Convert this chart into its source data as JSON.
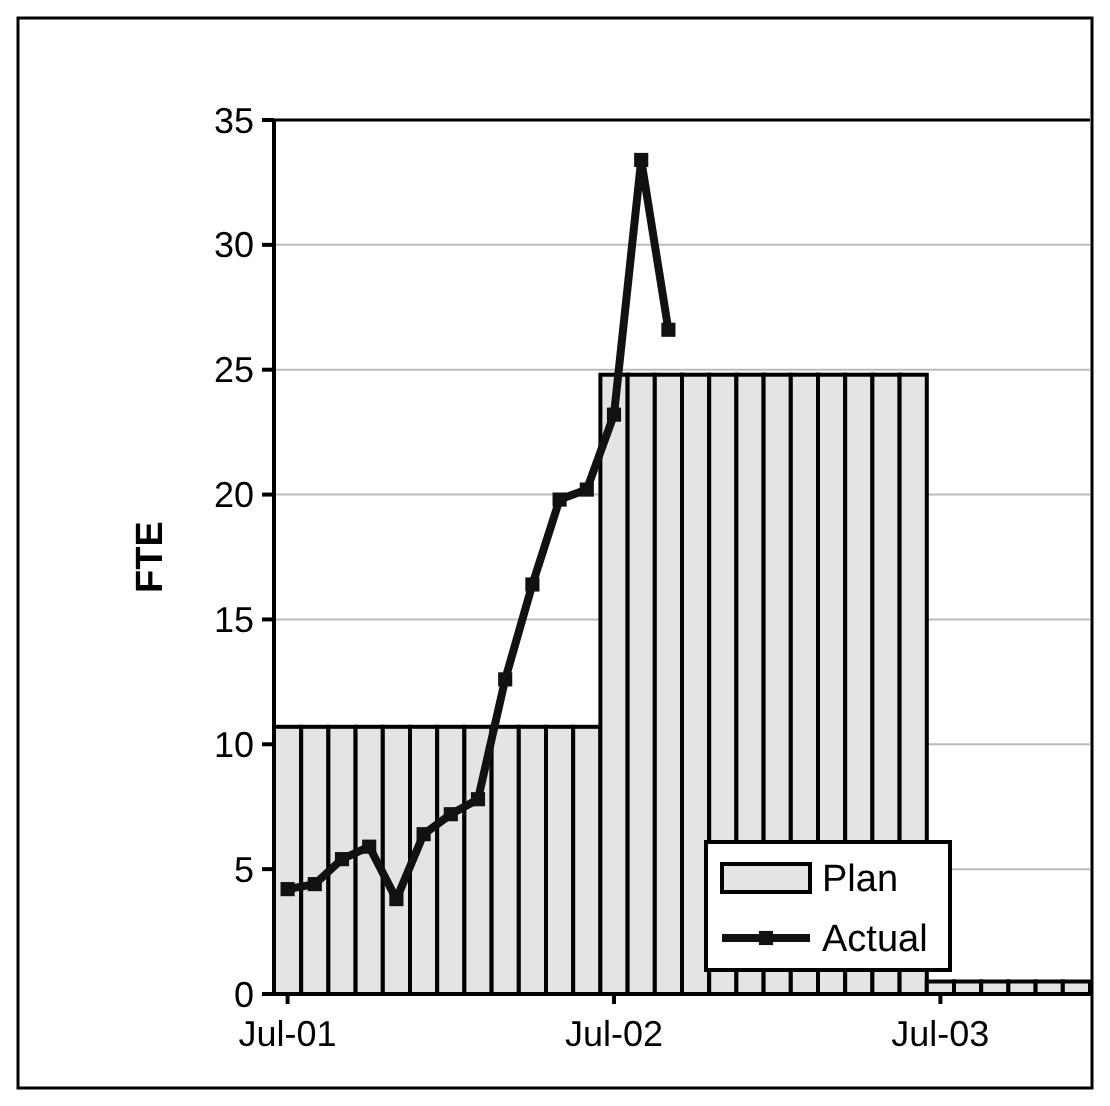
{
  "chart_data": {
    "type": "bar",
    "ylabel": "FTE",
    "categories": [
      "Jul-01",
      null,
      null,
      null,
      null,
      null,
      null,
      null,
      null,
      null,
      null,
      null,
      "Jul-02",
      null,
      null,
      null,
      null,
      null,
      null,
      null,
      null,
      null,
      null,
      null,
      "Jul-03",
      null,
      null,
      null,
      null,
      null
    ],
    "ylim": [
      0,
      35
    ],
    "yticks": [
      0,
      5,
      10,
      15,
      20,
      25,
      30,
      35
    ],
    "grid": "y",
    "legend": "bottom right",
    "series": [
      {
        "name": "Plan",
        "color": "#e4e4e4",
        "values": [
          10.7,
          10.7,
          10.7,
          10.7,
          10.7,
          10.7,
          10.7,
          10.7,
          10.7,
          10.7,
          10.7,
          10.7,
          24.8,
          24.8,
          24.8,
          24.8,
          24.8,
          24.8,
          24.8,
          24.8,
          24.8,
          24.8,
          24.8,
          24.8,
          0.5,
          0.5,
          0.5,
          0.5,
          0.5,
          0.5
        ]
      },
      {
        "name": "Actual",
        "type": "line",
        "color": "#111111",
        "marker": "square",
        "line_style": "solid",
        "values": [
          4.2,
          4.4,
          5.4,
          5.9,
          3.8,
          6.4,
          7.2,
          7.8,
          12.6,
          16.4,
          19.8,
          20.2,
          23.2,
          33.4,
          26.6,
          null,
          null,
          null,
          null,
          null,
          null,
          null,
          null,
          null,
          null,
          null,
          null,
          null,
          null,
          null
        ]
      }
    ]
  }
}
